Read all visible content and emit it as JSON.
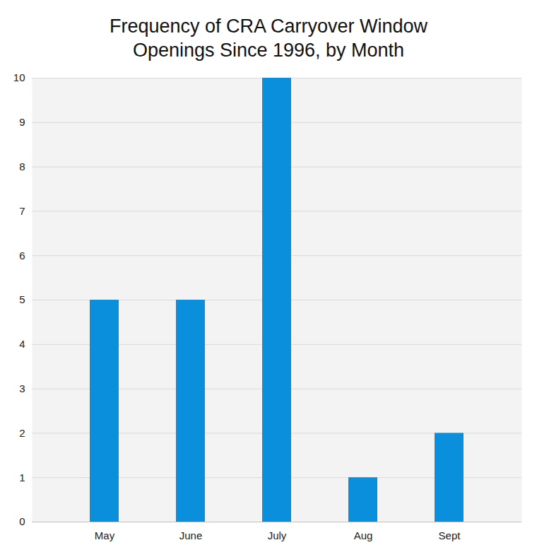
{
  "chart_data": {
    "type": "bar",
    "title": "Frequency of CRA Carryover Window\nOpenings Since 1996, by Month",
    "categories": [
      "May",
      "June",
      "July",
      "Aug",
      "Sept"
    ],
    "values": [
      5,
      5,
      10,
      1,
      2
    ],
    "color": "#0a8fdc",
    "ylim": [
      0,
      10
    ],
    "yticks": [
      0,
      1,
      2,
      3,
      4,
      5,
      6,
      7,
      8,
      9,
      10
    ],
    "grid": true
  }
}
